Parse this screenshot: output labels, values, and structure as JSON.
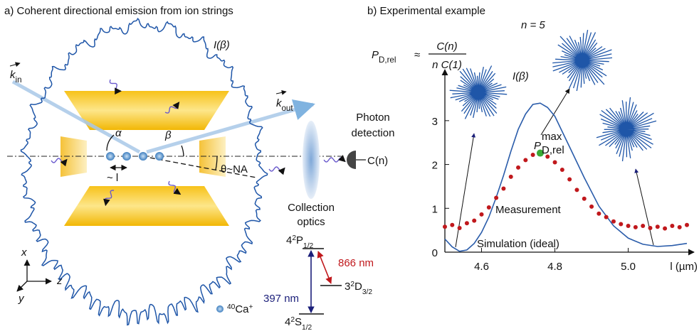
{
  "panel_a": {
    "title": "a) Coherent directional emission from ion strings",
    "intensity_label": "I(β)",
    "k_in": {
      "main": "k",
      "sub": "in"
    },
    "k_out": {
      "main": "k",
      "sub": "out"
    },
    "alpha": "α",
    "beta": "β",
    "theta": "θ~NA",
    "spacing": "~ l",
    "photon_detection": [
      "Photon",
      "detection"
    ],
    "signal": "C(n)",
    "collection_optics": [
      "Collection",
      "optics"
    ],
    "axes": {
      "x": "x",
      "y": "y",
      "z": "z"
    },
    "ion": {
      "mass": "40",
      "element": "Ca",
      "charge": "+"
    },
    "levels": {
      "p": {
        "shell": "4",
        "multiplicity": "2",
        "term": "P",
        "j": "1/2"
      },
      "d": {
        "shell": "3",
        "multiplicity": "2",
        "term": "D",
        "j": "3/2"
      },
      "s": {
        "shell": "4",
        "multiplicity": "2",
        "term": "S",
        "j": "1/2"
      }
    },
    "wavelengths": {
      "blue": "397 nm",
      "red": "866 nm"
    }
  },
  "chart_data": {
    "type": "scatter",
    "title": "b) Experimental example",
    "n_label": "n = 5",
    "polar_label": "I(β)",
    "formula": {
      "lhs": "P",
      "lhs_sub": "D,rel",
      "relation": "≈",
      "numerator": "C(n)",
      "denominator": "n C(1)"
    },
    "x_label": "l (µm)",
    "xlim": [
      4.5,
      5.16
    ],
    "ylim": [
      0,
      3.97
    ],
    "xticks": [
      4.6,
      4.8,
      {
        "value": 5,
        "label": "5.0"
      }
    ],
    "yticks": [
      0,
      1,
      2,
      3
    ],
    "series": [
      {
        "name": "Measurement",
        "color": "#c0181c",
        "x": [
          4.5,
          4.52,
          4.54,
          4.56,
          4.58,
          4.6,
          4.62,
          4.64,
          4.66,
          4.68,
          4.7,
          4.72,
          4.74,
          4.76,
          4.78,
          4.8,
          4.82,
          4.84,
          4.86,
          4.88,
          4.9,
          4.92,
          4.94,
          4.96,
          4.98,
          5.0,
          5.02,
          5.04,
          5.06,
          5.08,
          5.1,
          5.12,
          5.14,
          5.16
        ],
        "values": [
          0.58,
          0.62,
          0.55,
          0.66,
          0.72,
          0.86,
          1.02,
          1.24,
          1.45,
          1.72,
          1.93,
          2.1,
          2.22,
          2.26,
          2.18,
          2.05,
          1.88,
          1.66,
          1.42,
          1.22,
          1.04,
          0.88,
          0.8,
          0.7,
          0.64,
          0.6,
          0.57,
          0.6,
          0.55,
          0.58,
          0.54,
          0.6,
          0.57,
          0.62
        ]
      },
      {
        "name": "Simulation (ideal)",
        "color": "#2a5caa",
        "x": [
          4.5,
          4.52,
          4.54,
          4.56,
          4.58,
          4.6,
          4.62,
          4.64,
          4.66,
          4.68,
          4.7,
          4.72,
          4.74,
          4.76,
          4.78,
          4.8,
          4.84,
          4.88,
          4.92,
          4.96,
          5.0,
          5.04,
          5.08,
          5.12,
          5.16
        ],
        "values": [
          0.3,
          0.12,
          0.02,
          0.05,
          0.2,
          0.45,
          0.8,
          1.25,
          1.75,
          2.3,
          2.8,
          3.15,
          3.37,
          3.4,
          3.3,
          3.1,
          2.4,
          1.7,
          1.05,
          0.6,
          0.32,
          0.18,
          0.13,
          0.15,
          0.2
        ]
      }
    ],
    "peak": {
      "x": 4.76,
      "y": 2.26,
      "color": "#3aa935",
      "label": {
        "main": "P",
        "sup": "max",
        "sub": "D,rel"
      }
    }
  }
}
